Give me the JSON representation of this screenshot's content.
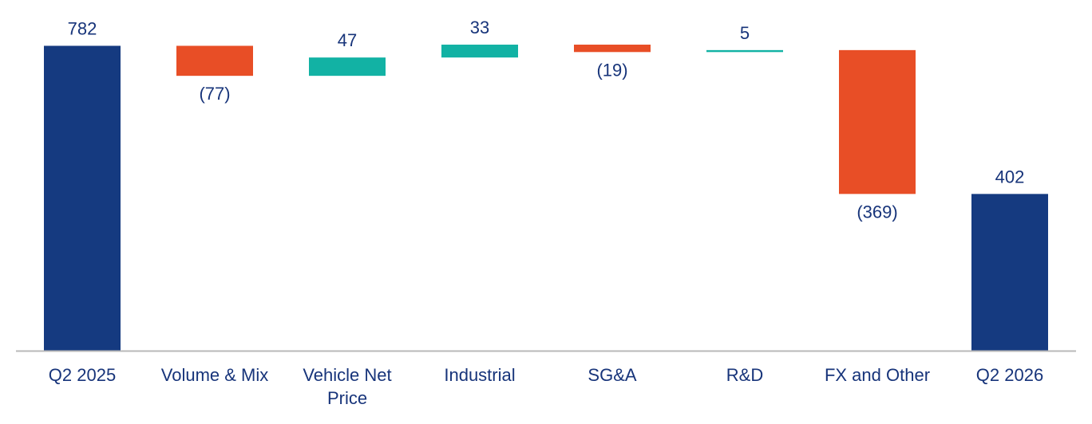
{
  "colors": {
    "total": "#153a80",
    "increase": "#12b2a4",
    "decrease": "#e84e26",
    "text": "#17347a",
    "axis": "#b8b8b8"
  },
  "chart_data": {
    "type": "waterfall",
    "title": "",
    "xlabel": "",
    "ylabel": "",
    "ylim": [
      0,
      830
    ],
    "grid": false,
    "legend": "none",
    "categories": [
      "Q2 2025",
      "Volume & Mix",
      "Vehicle Net Price",
      "Industrial",
      "SG&A",
      "R&D",
      "FX and Other",
      "Q2 2026"
    ],
    "category_lines": [
      [
        "Q2 2025"
      ],
      [
        "Volume & Mix"
      ],
      [
        "Vehicle Net",
        "Price"
      ],
      [
        "Industrial"
      ],
      [
        "SG&A"
      ],
      [
        "R&D"
      ],
      [
        "FX and Other"
      ],
      [
        "Q2 2026"
      ]
    ],
    "values": [
      782,
      -77,
      47,
      33,
      -19,
      5,
      -369,
      402
    ],
    "kinds": [
      "total",
      "decrease",
      "increase",
      "increase",
      "decrease",
      "increase",
      "decrease",
      "total"
    ],
    "labels": [
      "782",
      "(77)",
      "47",
      "33",
      "(19)",
      "5",
      "(369)",
      "402"
    ]
  }
}
